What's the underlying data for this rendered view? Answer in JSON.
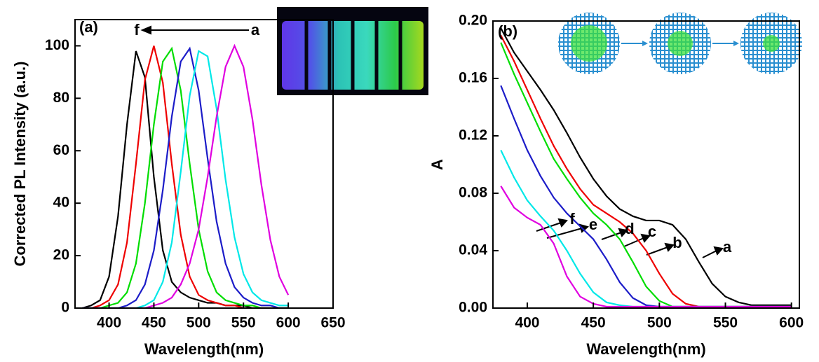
{
  "chart_data": [
    {
      "type": "line",
      "ylabel": "Corrected PL Intensity (a.u.)",
      "xlabel": "Wavelength(nm)",
      "xlim": [
        362,
        650
      ],
      "xticks": [
        400,
        450,
        500,
        550,
        600,
        650
      ],
      "ylim": [
        0,
        110
      ],
      "yticks": [
        0,
        20,
        40,
        60,
        80,
        100
      ],
      "annotations": [
        "(a)",
        "f",
        "a"
      ],
      "x": [
        370,
        380,
        390,
        400,
        410,
        420,
        430,
        440,
        450,
        460,
        470,
        480,
        490,
        500,
        510,
        520,
        530,
        540,
        550,
        560,
        570,
        580,
        590,
        600
      ],
      "series": [
        {
          "color": "#000000",
          "values": [
            0,
            1,
            3,
            12,
            35,
            70,
            98,
            88,
            50,
            22,
            10,
            6,
            4,
            3,
            2,
            2,
            1,
            1,
            1,
            0,
            0,
            0,
            0,
            0
          ]
        },
        {
          "color": "#ee0000",
          "values": [
            0,
            0,
            1,
            3,
            9,
            25,
            55,
            87,
            100,
            86,
            55,
            28,
            12,
            5,
            3,
            2,
            1,
            1,
            0,
            0,
            0,
            0,
            0,
            0
          ]
        },
        {
          "color": "#00dd00",
          "values": [
            0,
            0,
            0,
            1,
            2,
            6,
            17,
            40,
            70,
            94,
            99,
            83,
            55,
            30,
            14,
            6,
            3,
            2,
            1,
            1,
            0,
            0,
            0,
            0
          ]
        },
        {
          "color": "#1c1cc8",
          "values": [
            0,
            0,
            0,
            0,
            0,
            1,
            3,
            9,
            22,
            45,
            73,
            94,
            99,
            83,
            57,
            33,
            17,
            8,
            4,
            2,
            1,
            1,
            0,
            0
          ]
        },
        {
          "color": "#00e8e8",
          "values": [
            0,
            0,
            0,
            0,
            0,
            0,
            0,
            1,
            3,
            10,
            25,
            52,
            81,
            98,
            96,
            76,
            49,
            27,
            13,
            6,
            3,
            2,
            1,
            1
          ]
        },
        {
          "color": "#e000e0",
          "values": [
            0,
            0,
            0,
            0,
            0,
            0,
            0,
            0,
            1,
            2,
            4,
            9,
            17,
            30,
            50,
            73,
            92,
            100,
            92,
            72,
            47,
            26,
            12,
            5
          ]
        }
      ]
    },
    {
      "type": "line",
      "ylabel": "A",
      "xlabel": "Wavelength(nm)",
      "xlim": [
        374,
        606
      ],
      "xticks": [
        400,
        450,
        500,
        550,
        600
      ],
      "ylim": [
        0,
        0.2
      ],
      "yticks": [
        {
          "value": 0,
          "label": "0.00"
        },
        0.04,
        0.08,
        0.12,
        0.16,
        {
          "value": 0.2,
          "label": "0.20"
        }
      ],
      "annotations": [
        "(b)",
        "f",
        "e",
        "d",
        "c",
        "b",
        "a"
      ],
      "x": [
        380,
        390,
        400,
        410,
        420,
        430,
        440,
        450,
        460,
        470,
        480,
        490,
        500,
        510,
        520,
        530,
        540,
        550,
        560,
        570,
        580,
        590,
        600
      ],
      "series": [
        {
          "color": "#000000",
          "values": [
            0.195,
            0.178,
            0.165,
            0.152,
            0.138,
            0.122,
            0.105,
            0.09,
            0.078,
            0.069,
            0.064,
            0.061,
            0.061,
            0.058,
            0.048,
            0.032,
            0.017,
            0.008,
            0.004,
            0.002,
            0.002,
            0.002,
            0.002
          ]
        },
        {
          "color": "#ee0000",
          "values": [
            0.19,
            0.172,
            0.152,
            0.132,
            0.113,
            0.097,
            0.083,
            0.072,
            0.066,
            0.06,
            0.052,
            0.04,
            0.024,
            0.01,
            0.003,
            0.001,
            0.001,
            0.001,
            0.001,
            0.001,
            0.001,
            0.001,
            0.001
          ]
        },
        {
          "color": "#00dd00",
          "values": [
            0.185,
            0.163,
            0.143,
            0.123,
            0.104,
            0.09,
            0.077,
            0.066,
            0.058,
            0.048,
            0.032,
            0.015,
            0.005,
            0.001,
            0.001,
            0.001,
            0.001,
            0.001,
            0.001,
            0.001,
            0.001,
            0.001,
            0.001
          ]
        },
        {
          "color": "#1c1cc8",
          "values": [
            0.155,
            0.132,
            0.11,
            0.092,
            0.077,
            0.066,
            0.057,
            0.048,
            0.034,
            0.018,
            0.007,
            0.002,
            0.001,
            0.001,
            0.001,
            0.001,
            0.001,
            0.001,
            0.001,
            0.001,
            0.001,
            0.001,
            0.001
          ]
        },
        {
          "color": "#00e8e8",
          "values": [
            0.11,
            0.091,
            0.075,
            0.064,
            0.054,
            0.04,
            0.024,
            0.011,
            0.004,
            0.002,
            0.001,
            0.001,
            0.001,
            0.001,
            0.001,
            0.001,
            0.001,
            0.001,
            0.001,
            0.001,
            0.001,
            0.001,
            0.001
          ]
        },
        {
          "color": "#e000e0",
          "values": [
            0.085,
            0.07,
            0.063,
            0.058,
            0.045,
            0.022,
            0.008,
            0.003,
            0.001,
            0.001,
            0.001,
            0.001,
            0.001,
            0.001,
            0.001,
            0.001,
            0.001,
            0.001,
            0.001,
            0.001,
            0.001,
            0.001,
            0.001
          ]
        }
      ]
    }
  ]
}
